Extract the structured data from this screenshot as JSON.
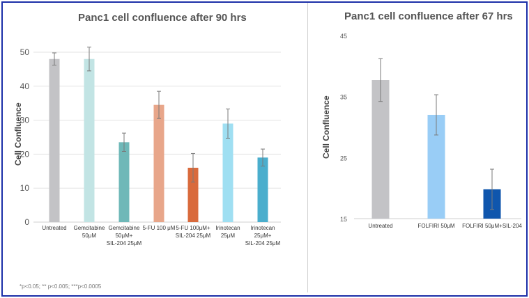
{
  "chart_data": [
    {
      "type": "bar",
      "title": "Panc1 cell confluence after 90 hrs",
      "ylabel": "Cell Confluence",
      "xlabel": "",
      "ylim": [
        0,
        50
      ],
      "yticks": [
        "0",
        "10",
        "20",
        "30",
        "40",
        "50"
      ],
      "grid": true,
      "categories": [
        [
          "Untreated"
        ],
        [
          "Gemcitabine",
          "50μM"
        ],
        [
          "Gemcitabine",
          "50μM+",
          "SIL-204 25μM"
        ],
        [
          "5-FU 100 μM"
        ],
        [
          "5-FU 100μM+",
          "SIL-204 25μM"
        ],
        [
          "Irinotecan",
          "25μM"
        ],
        [
          "Irinotecan",
          "25μM+",
          "SIL-204 25μM"
        ]
      ],
      "values": [
        48,
        48,
        23.5,
        34.5,
        16,
        29,
        19
      ],
      "errors": [
        1.8,
        3.5,
        2.7,
        4,
        4.2,
        4.3,
        2.5
      ],
      "colors": [
        "#c3c3c6",
        "#c2e4e4",
        "#6fb8b8",
        "#e8a68a",
        "#d96a3c",
        "#9fdff2",
        "#4aaecd"
      ]
    },
    {
      "type": "bar",
      "title": "Panc1 cell confluence after 67 hrs",
      "ylabel": "Cell Confluence",
      "xlabel": "",
      "ylim": [
        15,
        45
      ],
      "yticks": [
        "15",
        "25",
        "35",
        "45"
      ],
      "grid": false,
      "categories": [
        [
          "Untreated"
        ],
        [
          "FOLFIRI 50μM"
        ],
        [
          "FOLFIRI 50μM+SIL-204"
        ]
      ],
      "values": [
        37.7,
        32,
        19.8
      ],
      "errors": [
        3.5,
        3.3,
        3.3
      ],
      "colors": [
        "#c3c3c6",
        "#99cdf6",
        "#0f56ad"
      ]
    }
  ],
  "footnote": "*p<0.05; ** p<0.005; ***p<0.0005"
}
